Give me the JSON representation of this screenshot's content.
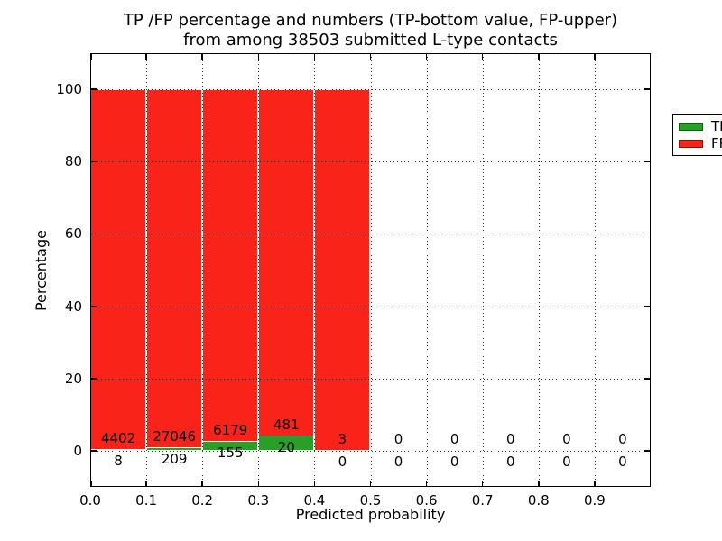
{
  "figure": {
    "title_line1": "TP /FP percentage and numbers (TP-bottom value, FP-upper)",
    "title_line2": "from among 38503 submitted L-type contacts"
  },
  "chart_data": {
    "type": "bar",
    "subtype": "stacked-percentage-histogram",
    "title": "TP /FP percentage and numbers (TP-bottom value, FP-upper) from among 38503 submitted L-type contacts",
    "total_submitted": 38503,
    "xlabel": "Predicted probability",
    "ylabel": "Percentage",
    "xlim": [
      0.0,
      1.0
    ],
    "ylim": [
      -10,
      110
    ],
    "x_ticks": [
      "0.0",
      "0.1",
      "0.2",
      "0.3",
      "0.4",
      "0.5",
      "0.6",
      "0.7",
      "0.8",
      "0.9"
    ],
    "y_ticks": [
      0,
      20,
      40,
      60,
      80,
      100
    ],
    "grid": "dotted",
    "colors": {
      "tp": "#28a028",
      "fp": "#fa231a",
      "bar_edge": "#ffffff",
      "grid": "#333333"
    },
    "legend": {
      "position": "upper-right",
      "entries": [
        {
          "label": "TP",
          "color": "#28a028"
        },
        {
          "label": "FP",
          "color": "#fa231a"
        }
      ]
    },
    "bins": [
      {
        "range": [
          0.0,
          0.1
        ],
        "tp": 8,
        "fp": 4402,
        "tp_label": "8",
        "fp_label": "4402"
      },
      {
        "range": [
          0.1,
          0.2
        ],
        "tp": 209,
        "fp": 27046,
        "tp_label": "209",
        "fp_label": "27046"
      },
      {
        "range": [
          0.2,
          0.3
        ],
        "tp": 155,
        "fp": 6179,
        "tp_label": "155",
        "fp_label": "6179"
      },
      {
        "range": [
          0.3,
          0.4
        ],
        "tp": 20,
        "fp": 481,
        "tp_label": "20",
        "fp_label": "481"
      },
      {
        "range": [
          0.4,
          0.5
        ],
        "tp": 0,
        "fp": 3,
        "tp_label": "0",
        "fp_label": "3"
      },
      {
        "range": [
          0.5,
          0.6
        ],
        "tp": 0,
        "fp": 0,
        "tp_label": "0",
        "fp_label": "0"
      },
      {
        "range": [
          0.6,
          0.7
        ],
        "tp": 0,
        "fp": 0,
        "tp_label": "0",
        "fp_label": "0"
      },
      {
        "range": [
          0.7,
          0.8
        ],
        "tp": 0,
        "fp": 0,
        "tp_label": "0",
        "fp_label": "0"
      },
      {
        "range": [
          0.8,
          0.9
        ],
        "tp": 0,
        "fp": 0,
        "tp_label": "0",
        "fp_label": "0"
      },
      {
        "range": [
          0.9,
          1.0
        ],
        "tp": 0,
        "fp": 0,
        "tp_label": "0",
        "fp_label": "0"
      }
    ]
  }
}
